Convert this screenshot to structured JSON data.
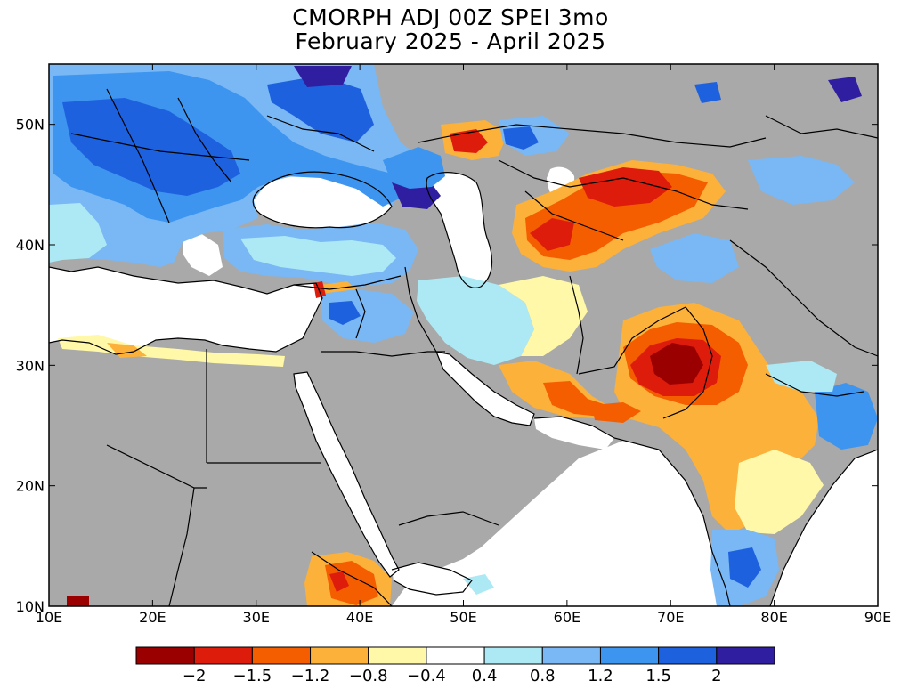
{
  "title": {
    "line1": "CMORPH ADJ 00Z SPEI 3mo",
    "line2": "February 2025 - April 2025"
  },
  "map": {
    "lon_range": [
      10,
      90
    ],
    "lat_range": [
      10,
      55
    ],
    "x_ticks": [
      {
        "value": 10,
        "label": "10E"
      },
      {
        "value": 20,
        "label": "20E"
      },
      {
        "value": 30,
        "label": "30E"
      },
      {
        "value": 40,
        "label": "40E"
      },
      {
        "value": 50,
        "label": "50E"
      },
      {
        "value": 60,
        "label": "60E"
      },
      {
        "value": 70,
        "label": "70E"
      },
      {
        "value": 80,
        "label": "80E"
      },
      {
        "value": 90,
        "label": "90E"
      }
    ],
    "y_ticks": [
      {
        "value": 10,
        "label": "10N"
      },
      {
        "value": 20,
        "label": "20N"
      },
      {
        "value": 30,
        "label": "30N"
      },
      {
        "value": 40,
        "label": "40N"
      },
      {
        "value": 50,
        "label": "50N"
      }
    ],
    "colors": {
      "no_data": "#a9a9a9",
      "ocean": "#ffffff",
      "border": "#000000"
    }
  },
  "colorbar": {
    "bins": [
      {
        "color": "#9b0000"
      },
      {
        "color": "#dd1c0c"
      },
      {
        "color": "#f55e00"
      },
      {
        "color": "#fcb13a"
      },
      {
        "color": "#fff8a8"
      },
      {
        "color": "#ffffff"
      },
      {
        "color": "#ade9f5"
      },
      {
        "color": "#79b8f4"
      },
      {
        "color": "#3d95ef"
      },
      {
        "color": "#1e61df"
      },
      {
        "color": "#2f1fa0"
      }
    ],
    "labels": [
      "-2",
      "-1.5",
      "-1.2",
      "-0.8",
      "-0.4",
      "0.4",
      "0.8",
      "1.2",
      "1.5",
      "2"
    ]
  }
}
